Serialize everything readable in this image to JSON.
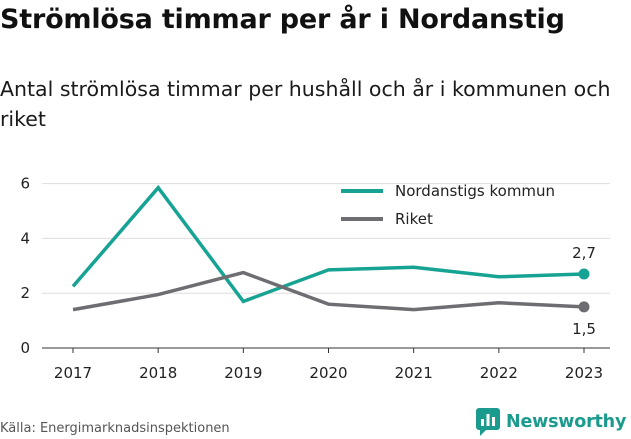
{
  "title": "Strömlösa timmar per år i Nordanstig",
  "subtitle": "Antal strömlösa timmar per hushåll och år i kommunen och riket",
  "source": "Källa: Energimarknadsinspektionen",
  "brand": {
    "name": "Newsworthy",
    "icon": "newsworthy-logo-icon"
  },
  "chart_data": {
    "type": "line",
    "x": [
      "2017",
      "2018",
      "2019",
      "2020",
      "2021",
      "2022",
      "2023"
    ],
    "series": [
      {
        "name": "Nordanstigs kommun",
        "color": "#16a394",
        "values": [
          2.25,
          5.85,
          1.7,
          2.85,
          2.95,
          2.6,
          2.7
        ],
        "end_label": "2,7"
      },
      {
        "name": "Riket",
        "color": "#6e6d72",
        "values": [
          1.4,
          1.95,
          2.75,
          1.6,
          1.4,
          1.65,
          1.5
        ],
        "end_label": "1,5"
      }
    ],
    "y_ticks": [
      "0",
      "2",
      "4",
      "6"
    ],
    "ylim": [
      0,
      6.3
    ],
    "grid": true,
    "legend": "top-right"
  }
}
